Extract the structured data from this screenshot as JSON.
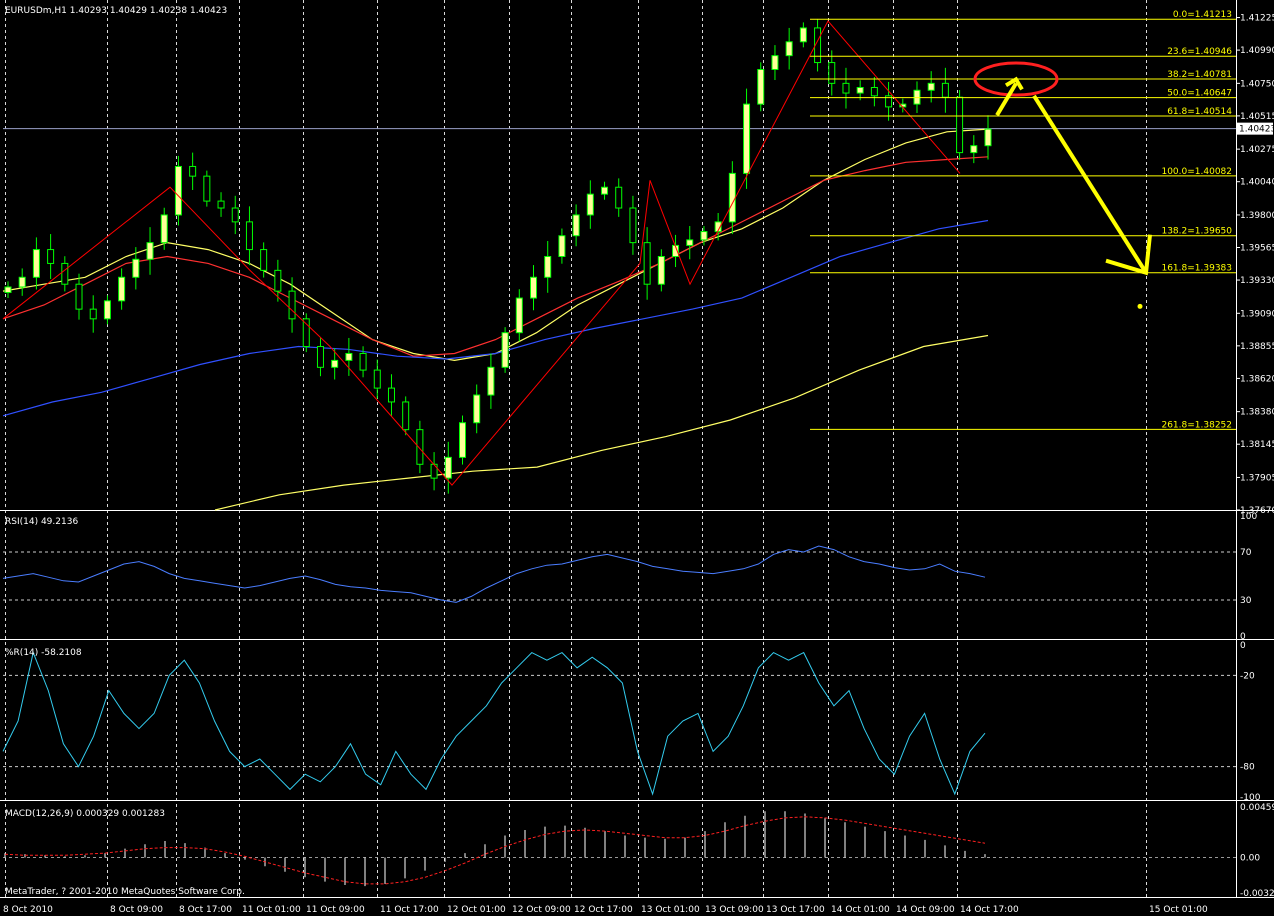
{
  "window": {
    "symbol_title": "EURUSDm,H1  1.40293 1.40429 1.40238 1.40423",
    "current_price_tag": "1.40423",
    "copyright": "MetaTrader, ? 2001-2010 MetaQuotes Software Corp."
  },
  "colors": {
    "background": "#000000",
    "bull_candle": "#ffff99",
    "bear_candle": "#000000",
    "candle_wick": "#00ff00",
    "grid": "#ffffff",
    "zigzag": "#ff0000",
    "ma_fast": "#ffff66",
    "ma_mid": "#ff3030",
    "ma_slow": "#3050ff",
    "ma_long": "#ffff66",
    "fib": "#ffff00",
    "rsi": "#4a7dff",
    "wpr": "#33ccee",
    "macd_hist": "#ffffff",
    "macd_signal": "#ff2020",
    "annotation_ellipse": "#ff2020",
    "annotation_arrow": "#ffff00"
  },
  "chart_data": [
    {
      "type": "candlestick",
      "panel": "price",
      "title": "EURUSDm,H1  1.40293 1.40429 1.40238 1.40423",
      "x": [
        "8 Oct 2010",
        "8 Oct 09:00",
        "8 Oct 17:00",
        "11 Oct 01:00",
        "11 Oct 09:00",
        "11 Oct 17:00",
        "12 Oct 01:00",
        "12 Oct 09:00",
        "12 Oct 17:00",
        "13 Oct 01:00",
        "13 Oct 09:00",
        "13 Oct 17:00",
        "14 Oct 01:00",
        "14 Oct 09:00",
        "14 Oct 17:00",
        "15 Oct 01:00"
      ],
      "y_ticks": [
        "1.41225",
        "1.40990",
        "1.40750",
        "1.40515",
        "1.40275",
        "1.40040",
        "1.39800",
        "1.39565",
        "1.39330",
        "1.39090",
        "1.38855",
        "1.38620",
        "1.38380",
        "1.38145",
        "1.37905",
        "1.37670"
      ],
      "ylim": [
        1.3767,
        1.4133
      ],
      "current_price": 1.40423,
      "ohlc_last": {
        "open": 1.40293,
        "high": 1.40429,
        "low": 1.40238,
        "close": 1.40423
      },
      "close_path": [
        1.3928,
        1.3935,
        1.3955,
        1.3945,
        1.393,
        1.3912,
        1.3905,
        1.3918,
        1.3935,
        1.3948,
        1.396,
        1.398,
        1.4015,
        1.4008,
        1.399,
        1.3985,
        1.3975,
        1.3955,
        1.394,
        1.3925,
        1.3905,
        1.3885,
        1.387,
        1.3875,
        1.388,
        1.3868,
        1.3855,
        1.3845,
        1.3825,
        1.38,
        1.379,
        1.3805,
        1.383,
        1.385,
        1.387,
        1.3895,
        1.392,
        1.3935,
        1.395,
        1.3965,
        1.398,
        1.3995,
        1.4,
        1.3985,
        1.396,
        1.393,
        1.395,
        1.3958,
        1.3962,
        1.3968,
        1.3975,
        1.401,
        1.406,
        1.4085,
        1.4095,
        1.4105,
        1.4115,
        1.409,
        1.4075,
        1.4068,
        1.4072,
        1.4066,
        1.4058,
        1.406,
        1.407,
        1.4075,
        1.4065,
        1.4025,
        1.403,
        1.4042
      ],
      "moving_averages": [
        {
          "key": "ma_fast",
          "values": [
            1.3925,
            1.393,
            1.3935,
            1.395,
            1.396,
            1.3955,
            1.3945,
            1.393,
            1.391,
            1.389,
            1.388,
            1.3875,
            1.388,
            1.3895,
            1.3915,
            1.393,
            1.3945,
            1.396,
            1.397,
            1.3985,
            1.4005,
            1.402,
            1.4032,
            1.404,
            1.4042
          ]
        },
        {
          "key": "ma_mid",
          "values": [
            1.3905,
            1.3915,
            1.393,
            1.3945,
            1.395,
            1.3945,
            1.3935,
            1.392,
            1.3905,
            1.389,
            1.3878,
            1.388,
            1.389,
            1.3905,
            1.392,
            1.3932,
            1.3945,
            1.396,
            1.3975,
            1.399,
            1.4005,
            1.4012,
            1.4018,
            1.402,
            1.4022
          ]
        },
        {
          "key": "ma_slow",
          "values": [
            1.3835,
            1.3845,
            1.3852,
            1.3862,
            1.3872,
            1.388,
            1.3885,
            1.3883,
            1.3878,
            1.3876,
            1.388,
            1.389,
            1.3898,
            1.3905,
            1.3912,
            1.392,
            1.3935,
            1.395,
            1.396,
            1.397,
            1.3976
          ]
        },
        {
          "key": "ma_long",
          "values": [
            1.3767,
            1.3778,
            1.3785,
            1.379,
            1.3795,
            1.3798,
            1.381,
            1.382,
            1.3832,
            1.3848,
            1.3868,
            1.3885,
            1.3893
          ]
        }
      ],
      "fibonacci": [
        {
          "label": "0.0=1.41213",
          "value": 1.41213
        },
        {
          "label": "23.6=1.40946",
          "value": 1.40946
        },
        {
          "label": "38.2=1.40781",
          "value": 1.40781
        },
        {
          "label": "50.0=1.40647",
          "value": 1.40647
        },
        {
          "label": "61.8=1.40514",
          "value": 1.40514
        },
        {
          "label": "100.0=1.40082",
          "value": 1.40082
        },
        {
          "label": "138.2=1.39650",
          "value": 1.3965
        },
        {
          "label": "161.8=1.39383",
          "value": 1.39383
        },
        {
          "label": "261.8=1.38252",
          "value": 1.38252
        }
      ],
      "zigzag": [
        1.3905,
        1.4,
        1.394,
        1.3885,
        1.3785,
        1.3945,
        1.4005,
        1.393,
        1.412,
        1.401
      ]
    },
    {
      "type": "line",
      "panel": "rsi",
      "title": "RSI(14) 49.2136",
      "y_ticks": [
        "100",
        "70",
        "30",
        "0"
      ],
      "ylim": [
        0,
        100
      ],
      "levels": [
        70,
        30
      ],
      "values": [
        48,
        50,
        52,
        49,
        46,
        45,
        50,
        55,
        60,
        62,
        58,
        52,
        48,
        46,
        44,
        42,
        40,
        42,
        45,
        48,
        50,
        47,
        43,
        41,
        40,
        38,
        37,
        36,
        33,
        30,
        28,
        33,
        40,
        46,
        52,
        56,
        59,
        60,
        63,
        66,
        68,
        65,
        62,
        58,
        56,
        54,
        53,
        52,
        54,
        56,
        60,
        68,
        72,
        70,
        75,
        72,
        66,
        62,
        60,
        57,
        55,
        56,
        60,
        54,
        52,
        49
      ]
    },
    {
      "type": "line",
      "panel": "williams_r",
      "title": "%R(14) -58.2108",
      "y_ticks": [
        "0",
        "-20",
        "-80",
        "-100"
      ],
      "ylim": [
        -100,
        0
      ],
      "levels": [
        -20,
        -80
      ],
      "values": [
        -70,
        -50,
        -5,
        -30,
        -65,
        -80,
        -60,
        -30,
        -45,
        -55,
        -45,
        -20,
        -10,
        -25,
        -50,
        -70,
        -80,
        -75,
        -85,
        -95,
        -85,
        -90,
        -80,
        -65,
        -85,
        -92,
        -70,
        -85,
        -95,
        -75,
        -60,
        -50,
        -40,
        -25,
        -15,
        -5,
        -10,
        -5,
        -15,
        -8,
        -15,
        -25,
        -70,
        -98,
        -60,
        -50,
        -45,
        -70,
        -60,
        -40,
        -15,
        -5,
        -10,
        -5,
        -25,
        -40,
        -30,
        -55,
        -75,
        -85,
        -60,
        -45,
        -75,
        -98,
        -70,
        -58
      ]
    },
    {
      "type": "bar",
      "panel": "macd",
      "title": "MACD(12,26,9) 0.000329 0.001283",
      "y_ticks": [
        "0.00459",
        "0.00",
        "-0.00323"
      ],
      "ylim": [
        -0.00323,
        0.00459
      ],
      "histogram": [
        0.0004,
        0.0003,
        0.0002,
        0.0001,
        0.0002,
        0.0004,
        0.0008,
        0.0012,
        0.0015,
        0.0013,
        0.0009,
        0.0004,
        -0.0002,
        -0.0008,
        -0.0013,
        -0.0018,
        -0.0022,
        -0.0025,
        -0.0026,
        -0.0024,
        -0.0019,
        -0.0012,
        -0.0004,
        0.0004,
        0.0012,
        0.002,
        0.0025,
        0.0028,
        0.0029,
        0.0027,
        0.0024,
        0.002,
        0.0018,
        0.0017,
        0.0018,
        0.0024,
        0.0032,
        0.0038,
        0.0042,
        0.0042,
        0.004,
        0.0036,
        0.0032,
        0.0028,
        0.0024,
        0.002,
        0.0016,
        0.0011,
        0.0006,
        0.0003
      ],
      "signal": [
        0.0003,
        0.0002,
        0.0002,
        0.0002,
        0.0003,
        0.0004,
        0.0006,
        0.0008,
        0.0009,
        0.0009,
        0.0008,
        0.0005,
        0.0001,
        -0.0004,
        -0.0009,
        -0.0014,
        -0.0018,
        -0.0022,
        -0.0024,
        -0.0024,
        -0.0022,
        -0.0018,
        -0.0012,
        -0.0005,
        0.0003,
        0.001,
        0.0016,
        0.0021,
        0.0024,
        0.0025,
        0.0024,
        0.0022,
        0.002,
        0.0018,
        0.0018,
        0.002,
        0.0024,
        0.0029,
        0.0033,
        0.0036,
        0.0037,
        0.0036,
        0.0034,
        0.0031,
        0.0028,
        0.0025,
        0.0022,
        0.0019,
        0.0016,
        0.0013
      ]
    }
  ]
}
